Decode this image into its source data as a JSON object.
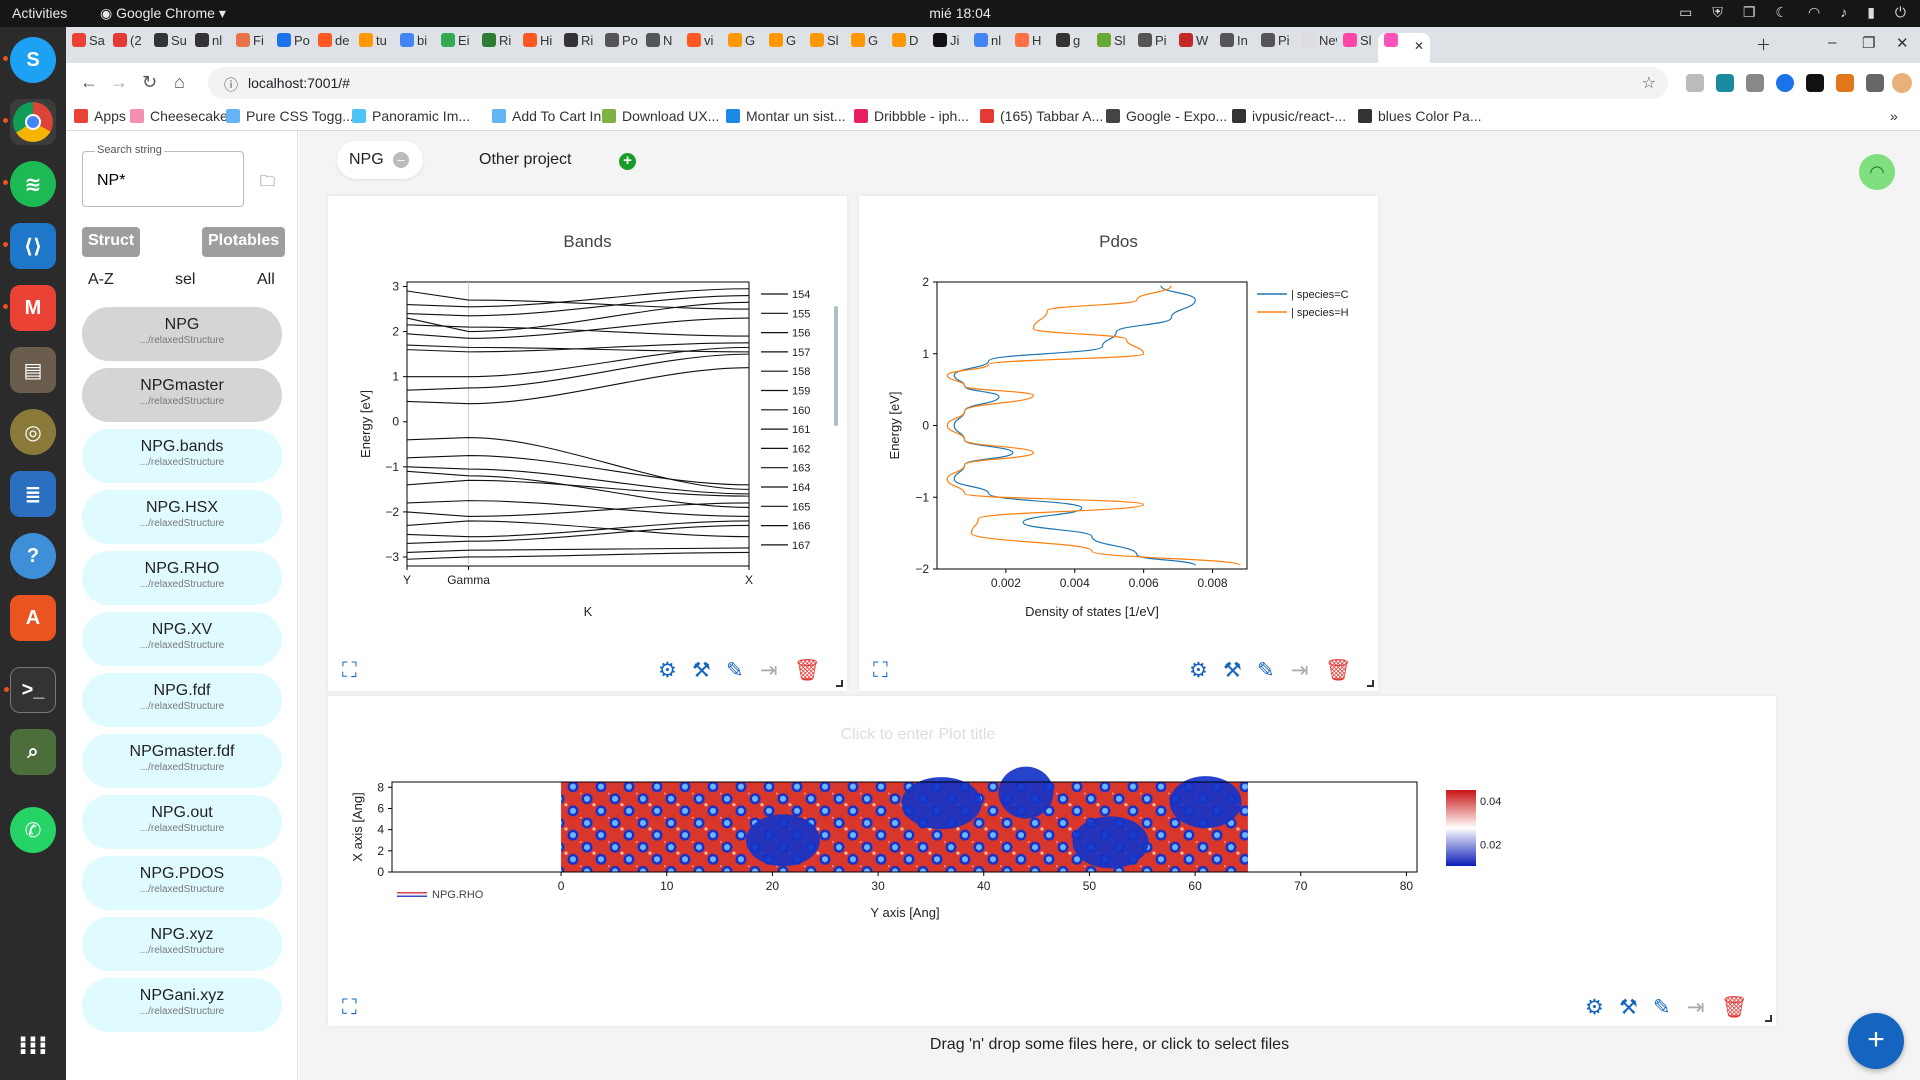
{
  "system_bar": {
    "activities": "Activities",
    "app_name": "Google Chrome",
    "clock": "mié 18:04"
  },
  "browser": {
    "tabs": [
      "Sa",
      "(2",
      "Su",
      "nl",
      "Fi",
      "Po",
      "de",
      "tu",
      "bi",
      "Ei",
      "Ri",
      "Hi",
      "Ri",
      "Po",
      "N",
      "vi",
      "G",
      "G",
      "Sl",
      "G",
      "D",
      "Ji",
      "nl",
      "H",
      "g",
      "Sl",
      "Pi",
      "W",
      "In",
      "Pi",
      "New",
      "Sl",
      ""
    ],
    "url": "localhost:7001/#",
    "bookmarks": [
      "Apps",
      "Cheesecake",
      "Pure CSS Togg...",
      "Panoramic Im...",
      "Add To Cart In...",
      "Download UX...",
      "Montar un sist...",
      "Dribbble - iph...",
      "(165) Tabbar A...",
      "Google - Expo...",
      "ivpusic/react-...",
      "blues Color Pa..."
    ]
  },
  "sidebar": {
    "search_label": "Search string",
    "search_value": "NP*",
    "buttons": [
      "Struct",
      "Plotables"
    ],
    "sort": [
      "A-Z",
      "sel",
      "All"
    ],
    "items": [
      {
        "name": "NPG",
        "path": ".../relaxedStructure"
      },
      {
        "name": "NPGmaster",
        "path": ".../relaxedStructure"
      },
      {
        "name": "NPG.bands",
        "path": ".../relaxedStructure"
      },
      {
        "name": "NPG.HSX",
        "path": ".../relaxedStructure"
      },
      {
        "name": "NPG.RHO",
        "path": ".../relaxedStructure"
      },
      {
        "name": "NPG.XV",
        "path": ".../relaxedStructure"
      },
      {
        "name": "NPG.fdf",
        "path": ".../relaxedStructure"
      },
      {
        "name": "NPGmaster.fdf",
        "path": ".../relaxedStructure"
      },
      {
        "name": "NPG.out",
        "path": ".../relaxedStructure"
      },
      {
        "name": "NPG.PDOS",
        "path": ".../relaxedStructure"
      },
      {
        "name": "NPG.xyz",
        "path": ".../relaxedStructure"
      },
      {
        "name": "NPGani.xyz",
        "path": ".../relaxedStructure"
      }
    ]
  },
  "session_tabs": [
    "NPG",
    "Other project"
  ],
  "drop_text": "Drag 'n' drop some files here, or click to select files",
  "chart_data": [
    {
      "type": "line",
      "title": "Bands",
      "xlabel": "K",
      "ylabel": "Energy [eV]",
      "ylim": [
        -3.2,
        3.1
      ],
      "yticks": [
        3,
        2,
        1,
        0,
        -1,
        -2,
        -3
      ],
      "xticks": [
        "Y",
        "Gamma",
        "X"
      ],
      "series_names": [
        "154",
        "155",
        "156",
        "157",
        "158",
        "159",
        "160",
        "161",
        "162",
        "163",
        "164",
        "165",
        "166",
        "167"
      ],
      "band_endpoints": [
        [
          2.9,
          2.7,
          2.5
        ],
        [
          2.6,
          2.55,
          2.95
        ],
        [
          2.4,
          2.35,
          2.8
        ],
        [
          2.3,
          2.0,
          2.65
        ],
        [
          2.15,
          2.1,
          1.9
        ],
        [
          1.95,
          1.85,
          2.3
        ],
        [
          1.7,
          1.65,
          1.55
        ],
        [
          1.6,
          1.55,
          1.75
        ],
        [
          1.0,
          1.0,
          1.65
        ],
        [
          0.7,
          0.75,
          1.5
        ],
        [
          0.45,
          0.4,
          1.2
        ],
        [
          -0.4,
          -0.35,
          -1.5
        ],
        [
          -0.8,
          -0.75,
          -1.4
        ],
        [
          -1.0,
          -1.05,
          -1.6
        ],
        [
          -1.1,
          -1.2,
          -1.9
        ],
        [
          -1.4,
          -1.3,
          -1.65
        ],
        [
          -1.8,
          -1.75,
          -2.1
        ],
        [
          -2.0,
          -2.1,
          -1.8
        ],
        [
          -2.3,
          -2.2,
          -2.55
        ],
        [
          -2.5,
          -2.55,
          -2.2
        ],
        [
          -2.7,
          -2.65,
          -2.3
        ],
        [
          -2.9,
          -2.85,
          -2.8
        ],
        [
          -3.05,
          -3.0,
          -2.9
        ]
      ]
    },
    {
      "type": "line",
      "title": "Pdos",
      "xlabel": "Density of states [1/eV]",
      "ylabel": "Energy [eV]",
      "ylim": [
        -2,
        2
      ],
      "xticks": [
        0.002,
        0.004,
        0.006,
        0.008
      ],
      "yticks": [
        2,
        1,
        0,
        -1,
        -2
      ],
      "xlim": [
        0,
        0.009
      ],
      "series": [
        {
          "name": "| species=C",
          "color": "#1f77b4",
          "points": [
            [
              0.0065,
              1.95
            ],
            [
              0.0075,
              1.75
            ],
            [
              0.0068,
              1.5
            ],
            [
              0.0052,
              1.3
            ],
            [
              0.0048,
              1.1
            ],
            [
              0.0015,
              0.9
            ],
            [
              0.0005,
              0.7
            ],
            [
              0.0008,
              0.55
            ],
            [
              0.0018,
              0.4
            ],
            [
              0.0008,
              0.2
            ],
            [
              0.0005,
              0
            ],
            [
              0.0008,
              -0.2
            ],
            [
              0.0022,
              -0.38
            ],
            [
              0.0008,
              -0.55
            ],
            [
              0.0005,
              -0.75
            ],
            [
              0.0015,
              -0.95
            ],
            [
              0.0042,
              -1.15
            ],
            [
              0.0025,
              -1.35
            ],
            [
              0.0045,
              -1.55
            ],
            [
              0.0058,
              -1.8
            ],
            [
              0.0075,
              -1.95
            ]
          ]
        },
        {
          "name": "| species=H",
          "color": "#ff7f0e",
          "points": [
            [
              0.0068,
              1.95
            ],
            [
              0.0058,
              1.75
            ],
            [
              0.0032,
              1.6
            ],
            [
              0.0028,
              1.35
            ],
            [
              0.0055,
              1.2
            ],
            [
              0.006,
              1.0
            ],
            [
              0.0015,
              0.85
            ],
            [
              0.0003,
              0.7
            ],
            [
              0.0008,
              0.55
            ],
            [
              0.0028,
              0.42
            ],
            [
              0.0008,
              0.2
            ],
            [
              0.0003,
              0
            ],
            [
              0.0008,
              -0.2
            ],
            [
              0.0028,
              -0.38
            ],
            [
              0.0008,
              -0.55
            ],
            [
              0.0003,
              -0.75
            ],
            [
              0.0008,
              -0.95
            ],
            [
              0.006,
              -1.1
            ],
            [
              0.0012,
              -1.3
            ],
            [
              0.001,
              -1.5
            ],
            [
              0.0045,
              -1.75
            ],
            [
              0.0088,
              -1.95
            ]
          ]
        }
      ]
    },
    {
      "type": "heatmap",
      "title": "",
      "title_placeholder": "Click to enter Plot title",
      "xlabel": "Y axis [Ang]",
      "ylabel": "X axis [Ang]",
      "xlim": [
        -16,
        81
      ],
      "ylim": [
        0,
        8.5
      ],
      "xticks": [
        0,
        10,
        20,
        30,
        40,
        50,
        60,
        70,
        80
      ],
      "yticks": [
        0,
        2,
        4,
        6,
        8
      ],
      "data_extent_x": [
        0,
        65
      ],
      "colorbar_ticks": [
        0.04,
        0.02
      ],
      "legend": "NPG.RHO",
      "colorscale": [
        "#0a1db8",
        "#ffffff",
        "#c91414"
      ]
    }
  ],
  "colors": {
    "accent": "#1565c0",
    "delete": "#e53935",
    "tool": "#1565c0"
  }
}
